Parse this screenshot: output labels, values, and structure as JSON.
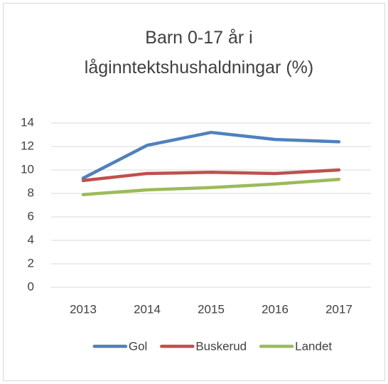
{
  "chart_data": {
    "type": "line",
    "title": "Barn 0-17 år i låginntektshushaldningar (%)",
    "categories": [
      "2013",
      "2014",
      "2015",
      "2016",
      "2017"
    ],
    "series": [
      {
        "name": "Gol",
        "color": "#4f81bd",
        "values": [
          9.3,
          12.1,
          13.2,
          12.6,
          12.4
        ]
      },
      {
        "name": "Buskerud",
        "color": "#c0504d",
        "values": [
          9.1,
          9.7,
          9.8,
          9.7,
          10.0
        ]
      },
      {
        "name": "Landet",
        "color": "#9bbb59",
        "values": [
          7.9,
          8.3,
          8.5,
          8.8,
          9.2
        ]
      }
    ],
    "ylim": [
      0,
      14
    ],
    "yticks": [
      0,
      2,
      4,
      6,
      8,
      10,
      12,
      14
    ],
    "grid": true,
    "legend": "bottom"
  }
}
